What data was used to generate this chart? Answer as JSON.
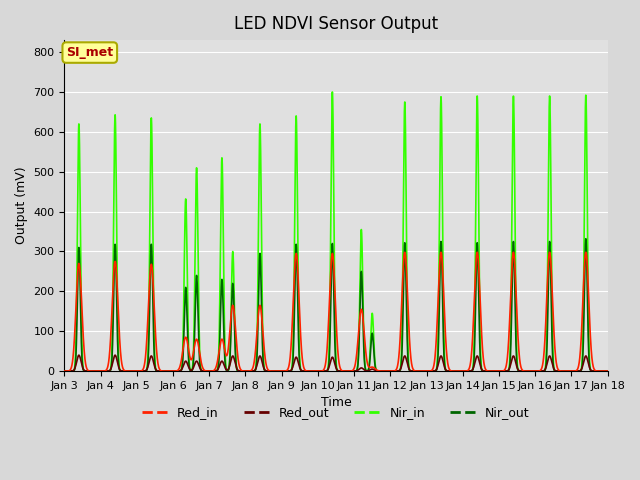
{
  "title": "LED NDVI Sensor Output",
  "xlabel": "Time",
  "ylabel": "Output (mV)",
  "ylim": [
    0,
    830
  ],
  "yticks": [
    0,
    100,
    200,
    300,
    400,
    500,
    600,
    700,
    800
  ],
  "xlim_days": [
    3,
    18
  ],
  "xtick_labels": [
    "Jan 3",
    "Jan 4",
    "Jan 5",
    "Jan 6",
    "Jan 7",
    "Jan 8",
    "Jan 9",
    "Jan 10",
    "Jan 11",
    "Jan 12",
    "Jan 13",
    "Jan 14",
    "Jan 15",
    "Jan 16",
    "Jan 17",
    "Jan 18"
  ],
  "legend_entries": [
    "Red_in",
    "Red_out",
    "Nir_in",
    "Nir_out"
  ],
  "legend_colors": [
    "#ff2200",
    "#660000",
    "#33ff00",
    "#006600"
  ],
  "bg_color": "#d8d8d8",
  "plot_bg_color": "#e0e0e0",
  "annotation_text": "SI_met",
  "annotation_color": "#aa0000",
  "annotation_bg": "#ffff99",
  "annotation_border": "#aaaa00",
  "grid_color": "#ffffff",
  "title_fontsize": 12,
  "axis_fontsize": 9,
  "tick_fontsize": 8,
  "spikes": [
    {
      "day": 3.4,
      "red_in": 270,
      "red_out": 40,
      "nir_in": 620,
      "nir_out": 310
    },
    {
      "day": 4.4,
      "red_in": 275,
      "red_out": 40,
      "nir_in": 643,
      "nir_out": 318
    },
    {
      "day": 5.4,
      "red_in": 268,
      "red_out": 38,
      "nir_in": 635,
      "nir_out": 318
    },
    {
      "day": 6.35,
      "red_in": 85,
      "red_out": 25,
      "nir_in": 432,
      "nir_out": 210
    },
    {
      "day": 6.65,
      "red_in": 80,
      "red_out": 25,
      "nir_in": 510,
      "nir_out": 240
    },
    {
      "day": 7.35,
      "red_in": 80,
      "red_out": 25,
      "nir_in": 535,
      "nir_out": 230
    },
    {
      "day": 7.65,
      "red_in": 165,
      "red_out": 38,
      "nir_in": 300,
      "nir_out": 220
    },
    {
      "day": 8.4,
      "red_in": 165,
      "red_out": 38,
      "nir_in": 620,
      "nir_out": 295
    },
    {
      "day": 9.4,
      "red_in": 295,
      "red_out": 35,
      "nir_in": 640,
      "nir_out": 318
    },
    {
      "day": 10.4,
      "red_in": 295,
      "red_out": 35,
      "nir_in": 700,
      "nir_out": 320
    },
    {
      "day": 11.2,
      "red_in": 155,
      "red_out": 8,
      "nir_in": 355,
      "nir_out": 250
    },
    {
      "day": 11.5,
      "red_in": 10,
      "red_out": 5,
      "nir_in": 145,
      "nir_out": 95
    },
    {
      "day": 12.4,
      "red_in": 298,
      "red_out": 38,
      "nir_in": 675,
      "nir_out": 322
    },
    {
      "day": 13.4,
      "red_in": 298,
      "red_out": 38,
      "nir_in": 688,
      "nir_out": 325
    },
    {
      "day": 14.4,
      "red_in": 298,
      "red_out": 38,
      "nir_in": 690,
      "nir_out": 322
    },
    {
      "day": 15.4,
      "red_in": 298,
      "red_out": 38,
      "nir_in": 690,
      "nir_out": 325
    },
    {
      "day": 16.4,
      "red_in": 298,
      "red_out": 38,
      "nir_in": 690,
      "nir_out": 325
    },
    {
      "day": 17.4,
      "red_in": 298,
      "red_out": 38,
      "nir_in": 692,
      "nir_out": 332
    }
  ]
}
